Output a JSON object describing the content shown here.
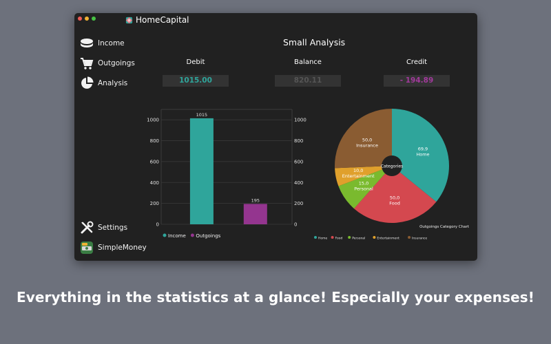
{
  "window": {
    "app_title": "HomeCapital",
    "traffic_colors": [
      "#ee5b56",
      "#f0b234",
      "#47c444"
    ]
  },
  "sidebar": {
    "items": [
      {
        "label": "Income",
        "icon": "coins-icon"
      },
      {
        "label": "Outgoings",
        "icon": "cart-icon"
      },
      {
        "label": "Analysis",
        "icon": "pie-chart-icon"
      }
    ],
    "bottom_items": [
      {
        "label": "Settings",
        "icon": "tools-icon"
      },
      {
        "label": "SimpleMoney",
        "icon": "simplemoney-app-icon"
      }
    ]
  },
  "main": {
    "title": "Small Analysis",
    "stats": [
      {
        "label": "Debit",
        "value": "1015.00",
        "color": "#2fa59b"
      },
      {
        "label": "Balance",
        "value": "820.11",
        "color": "#555555"
      },
      {
        "label": "Credit",
        "value": "- 194.89",
        "color": "#a23a9c"
      }
    ]
  },
  "chart_data": [
    {
      "type": "bar",
      "categories": [
        "Income",
        "Outgoings"
      ],
      "values": [
        1015,
        195
      ],
      "value_labels": [
        "1015",
        "195"
      ],
      "colors": [
        "#2fa59b",
        "#94358f"
      ],
      "ylim": [
        0,
        1100
      ],
      "yticks": [
        0,
        200,
        400,
        600,
        800,
        1000
      ],
      "legend": [
        "Income",
        "Outgoings"
      ],
      "legend_placement": "bottom-left",
      "grid": true,
      "title": "",
      "xlabel": "",
      "ylabel": ""
    },
    {
      "type": "pie",
      "title": "Outgoings Category Chart",
      "center_label": "Categories",
      "slices": [
        {
          "name": "Home",
          "value": 69.9,
          "label": "69,9",
          "color": "#2fa59b"
        },
        {
          "name": "Food",
          "value": 50.0,
          "label": "50,0",
          "color": "#d4484f"
        },
        {
          "name": "Personal",
          "value": 15.0,
          "label": "15,0",
          "color": "#7aba2e"
        },
        {
          "name": "Entertainment",
          "value": 10.0,
          "label": "10,0",
          "color": "#e0a02c"
        },
        {
          "name": "Insurance",
          "value": 50.0,
          "label": "50,0",
          "color": "#8a5c32"
        }
      ],
      "legend_placement": "bottom"
    }
  ],
  "footer": {
    "caption": "Everything in the statistics at a glance! Especially your expenses!"
  }
}
